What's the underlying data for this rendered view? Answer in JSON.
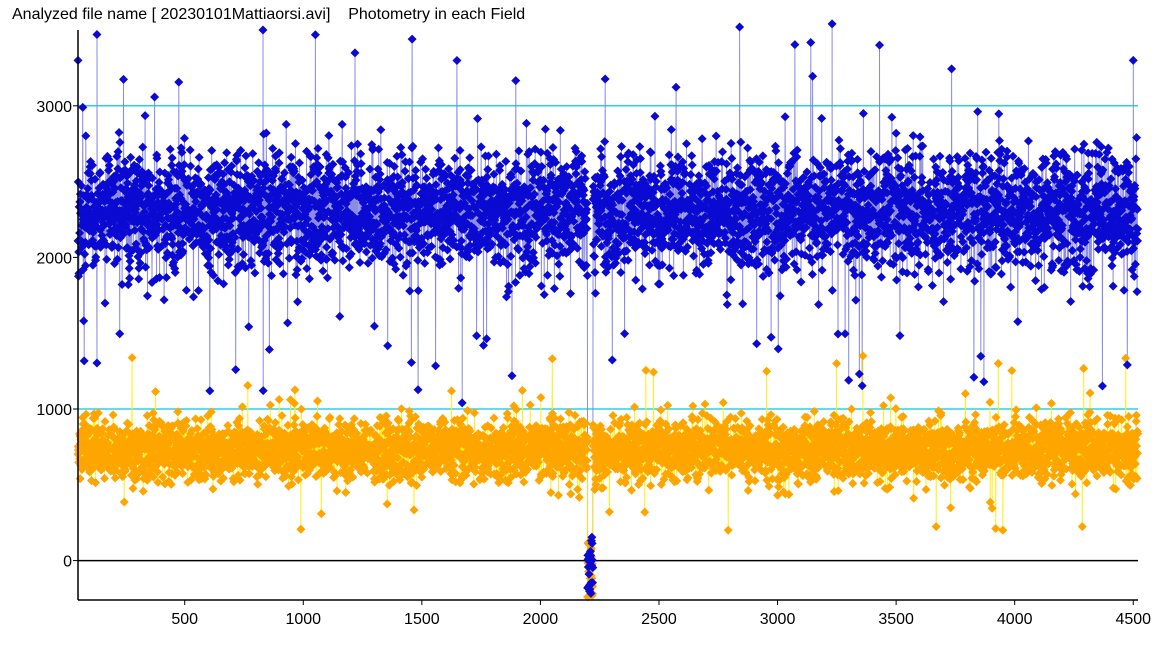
{
  "window": {
    "title": "Analyzed file name [ 20230101Mattiaorsi.avi]    Photometry in each Field"
  },
  "chart_data": {
    "type": "scatter",
    "title": "",
    "xlabel": "",
    "ylabel": "",
    "xlim": [
      50,
      4520
    ],
    "ylim": [
      -260,
      3500
    ],
    "x_ticks": [
      500,
      1000,
      1500,
      2000,
      2500,
      3000,
      3500,
      4000,
      4500
    ],
    "x_tick_labels": [
      "500",
      "1000",
      "1500",
      "2000",
      "2500",
      "3000",
      "3500",
      "4000",
      "4500"
    ],
    "y_ticks": [
      0,
      1000,
      2000,
      3000
    ],
    "y_tick_labels": [
      "0",
      "1000",
      "2000",
      "3000"
    ],
    "reference_lines": [
      {
        "y": 3000,
        "color": "#2ed0e0"
      },
      {
        "y": 1000,
        "color": "#2ed0e0"
      },
      {
        "y": 0,
        "color": "#000000"
      }
    ],
    "grid": false,
    "legend": "none",
    "dip": {
      "x": 2210,
      "min_y": -260
    },
    "series": [
      {
        "color": "#0a0ad2",
        "line_color": "#8080e0",
        "x_range": [
          50,
          4520
        ],
        "mean": 2300,
        "spread": 360,
        "min": 1000,
        "max": 3500,
        "count": 4470
      },
      {
        "color": "#ffa500",
        "line_color": "#ffee00",
        "x_range": [
          50,
          4520
        ],
        "mean": 730,
        "spread": 180,
        "min": 200,
        "max": 1350,
        "count": 4470
      }
    ],
    "notable_points": [
      {
        "series": 0,
        "x": 50,
        "y": 3300
      },
      {
        "series": 0,
        "x": 130,
        "y": 3470
      },
      {
        "series": 0,
        "x": 830,
        "y": 3500
      },
      {
        "series": 0,
        "x": 2840,
        "y": 3520
      },
      {
        "series": 0,
        "x": 3230,
        "y": 3540
      },
      {
        "series": 0,
        "x": 3430,
        "y": 3400
      },
      {
        "series": 0,
        "x": 4500,
        "y": 3300
      },
      {
        "series": 0,
        "x": 1670,
        "y": 1040
      },
      {
        "series": 0,
        "x": 3870,
        "y": 1180
      },
      {
        "series": 1,
        "x": 3950,
        "y": 200
      },
      {
        "series": 1,
        "x": 3360,
        "y": 1350
      }
    ]
  }
}
